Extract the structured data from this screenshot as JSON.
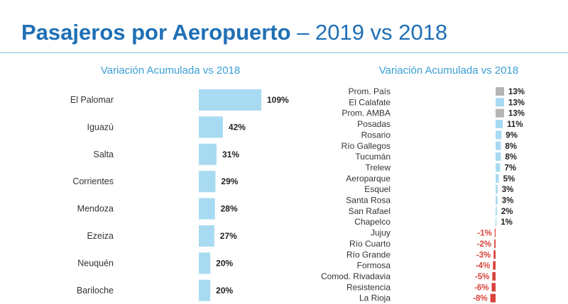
{
  "title": {
    "bold": "Pasajeros por Aeropuerto",
    "rest": " – 2019 vs 2018"
  },
  "colors": {
    "title": "#1f6fb5",
    "bar": "#a8daf2",
    "reference": "#b4b4b4",
    "negative": "#d9433b",
    "rule": "#7fc4e8"
  },
  "chart_data": [
    {
      "type": "bar",
      "orientation": "horizontal",
      "title": "Variación Acumulada vs 2018",
      "categories": [
        "El Palomar",
        "Iguazú",
        "Salta",
        "Corrientes",
        "Mendoza",
        "Ezeiza",
        "Neuquén",
        "Bariloche"
      ],
      "values": [
        109,
        42,
        31,
        29,
        28,
        27,
        20,
        20
      ],
      "labels": [
        "109%",
        "42%",
        "31%",
        "29%",
        "28%",
        "27%",
        "20%",
        "20%"
      ],
      "unit": "%",
      "grid": false,
      "legend": "none"
    },
    {
      "type": "bar",
      "orientation": "horizontal",
      "title": "Variación Acumulada vs 2018",
      "categories": [
        "Prom. País",
        "El Calafate",
        "Prom. AMBA",
        "Posadas",
        "Rosario",
        "Río Gallegos",
        "Tucumán",
        "Trelew",
        "Aeroparque",
        "Esquel",
        "Santa Rosa",
        "San Rafael",
        "Chapelco",
        "Jujuy",
        "Río Cuarto",
        "Río Grande",
        "Formosa",
        "Comod. Rivadavia",
        "Resistencia",
        "La Rioja"
      ],
      "values": [
        13,
        13,
        13,
        11,
        9,
        8,
        8,
        7,
        5,
        3,
        3,
        2,
        1,
        -1,
        -2,
        -3,
        -4,
        -5,
        -6,
        -8
      ],
      "labels": [
        "13%",
        "13%",
        "13%",
        "11%",
        "9%",
        "8%",
        "8%",
        "7%",
        "5%",
        "3%",
        "3%",
        "2%",
        "1%",
        "-1%",
        "-2%",
        "-3%",
        "-4%",
        "-5%",
        "-6%",
        "-8%"
      ],
      "highlighted": [
        "Prom. País",
        "Prom. AMBA"
      ],
      "unit": "%",
      "grid": false,
      "legend": "none"
    }
  ]
}
